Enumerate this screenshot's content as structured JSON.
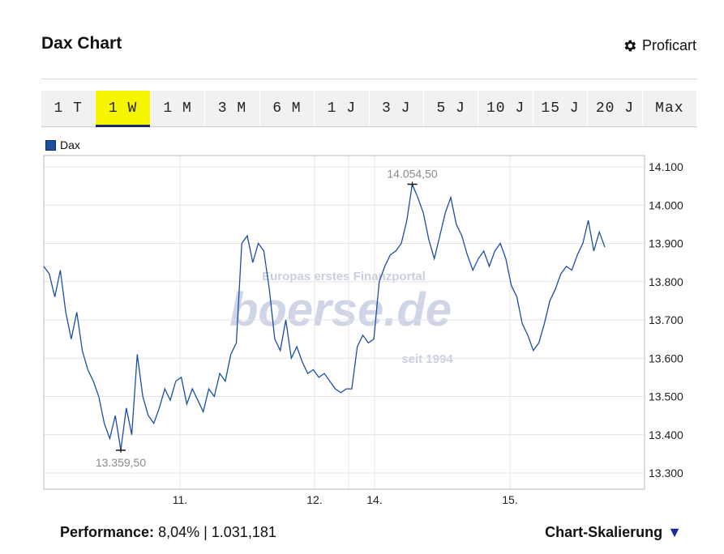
{
  "header": {
    "title": "Dax Chart",
    "profichart_label": "Proficart"
  },
  "tabs": [
    {
      "label": "1 T"
    },
    {
      "label": "1 W"
    },
    {
      "label": "1 M"
    },
    {
      "label": "3 M"
    },
    {
      "label": "6 M"
    },
    {
      "label": "1 J"
    },
    {
      "label": "3 J"
    },
    {
      "label": "5 J"
    },
    {
      "label": "10 J"
    },
    {
      "label": "15 J"
    },
    {
      "label": "20 J"
    },
    {
      "label": "Max"
    }
  ],
  "legend": {
    "label": "Dax",
    "color": "#1a4fa0"
  },
  "watermark": {
    "line1": "Europas erstes Finanzportal",
    "brand": "boerse.de",
    "line3": "seit 1994"
  },
  "footer": {
    "perf_label": "Performance:",
    "perf_value": "8,04%  |  1.031,181",
    "scaling_label": "Chart-Skalierung"
  },
  "chart_data": {
    "type": "line",
    "series": [
      {
        "name": "Dax",
        "color": "#1a4fa0",
        "values": [
          13840,
          13820,
          13760,
          13830,
          13720,
          13650,
          13720,
          13620,
          13570,
          13540,
          13500,
          13430,
          13390,
          13450,
          13360,
          13470,
          13400,
          13610,
          13500,
          13450,
          13430,
          13470,
          13520,
          13490,
          13540,
          13550,
          13480,
          13520,
          13490,
          13460,
          13520,
          13500,
          13560,
          13540,
          13610,
          13640,
          13900,
          13920,
          13850,
          13900,
          13880,
          13780,
          13650,
          13620,
          13700,
          13600,
          13630,
          13590,
          13560,
          13570,
          13550,
          13560,
          13540,
          13520,
          13510,
          13520,
          13520,
          13630,
          13660,
          13640,
          13650,
          13800,
          13840,
          13870,
          13880,
          13900,
          13960,
          14054.5,
          14020,
          13980,
          13910,
          13860,
          13920,
          13980,
          14020,
          13950,
          13920,
          13870,
          13830,
          13860,
          13880,
          13840,
          13880,
          13900,
          13860,
          13790,
          13760,
          13690,
          13660,
          13620,
          13640,
          13690,
          13750,
          13780,
          13820,
          13840,
          13830,
          13870,
          13900,
          13960,
          13880,
          13930,
          13890
        ]
      }
    ],
    "x_ticks": [
      "11.",
      "12.",
      "14.",
      "15."
    ],
    "y_ticks": [
      "14.100",
      "14.000",
      "13.900",
      "13.800",
      "13.700",
      "13.600",
      "13.500",
      "13.400",
      "13.300"
    ],
    "ylim": [
      13260,
      14100
    ],
    "annotations": [
      {
        "label": "14.054,50",
        "value": 14054.5,
        "index": 67
      },
      {
        "label": "13.359,50",
        "value": 13359.5,
        "index": 14
      }
    ],
    "grid": true
  }
}
